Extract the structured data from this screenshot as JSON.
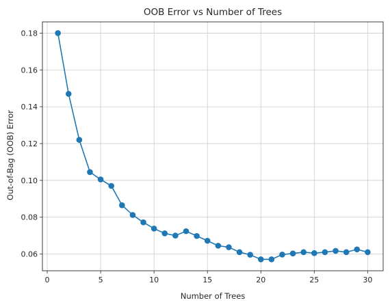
{
  "chart_data": {
    "type": "line",
    "title": "OOB Error vs Number of Trees",
    "xlabel": "Number of Trees",
    "ylabel": "Out-of-Bag (OOB) Error",
    "xlim": [
      -0.45,
      31.45
    ],
    "ylim": [
      0.0509,
      0.1861
    ],
    "xticks": [
      0,
      5,
      10,
      15,
      20,
      25,
      30
    ],
    "yticks": [
      0.06,
      0.08,
      0.1,
      0.12,
      0.14,
      0.16,
      0.18
    ],
    "xtick_labels": [
      "0",
      "5",
      "10",
      "15",
      "20",
      "25",
      "30"
    ],
    "ytick_labels": [
      "0.06",
      "0.08",
      "0.10",
      "0.12",
      "0.14",
      "0.16",
      "0.18"
    ],
    "grid": true,
    "markers": "circle",
    "color": "#1f77b4",
    "x": [
      1,
      2,
      3,
      4,
      5,
      6,
      7,
      8,
      9,
      10,
      11,
      12,
      13,
      14,
      15,
      16,
      17,
      18,
      19,
      20,
      21,
      22,
      23,
      24,
      25,
      26,
      27,
      28,
      29,
      30
    ],
    "y": [
      0.18,
      0.147,
      0.122,
      0.1045,
      0.1005,
      0.097,
      0.0865,
      0.0812,
      0.0772,
      0.0738,
      0.0712,
      0.07,
      0.0724,
      0.0698,
      0.0672,
      0.0645,
      0.0637,
      0.061,
      0.0596,
      0.0571,
      0.0571,
      0.0597,
      0.0603,
      0.061,
      0.0605,
      0.061,
      0.0617,
      0.061,
      0.0625,
      0.061
    ]
  }
}
